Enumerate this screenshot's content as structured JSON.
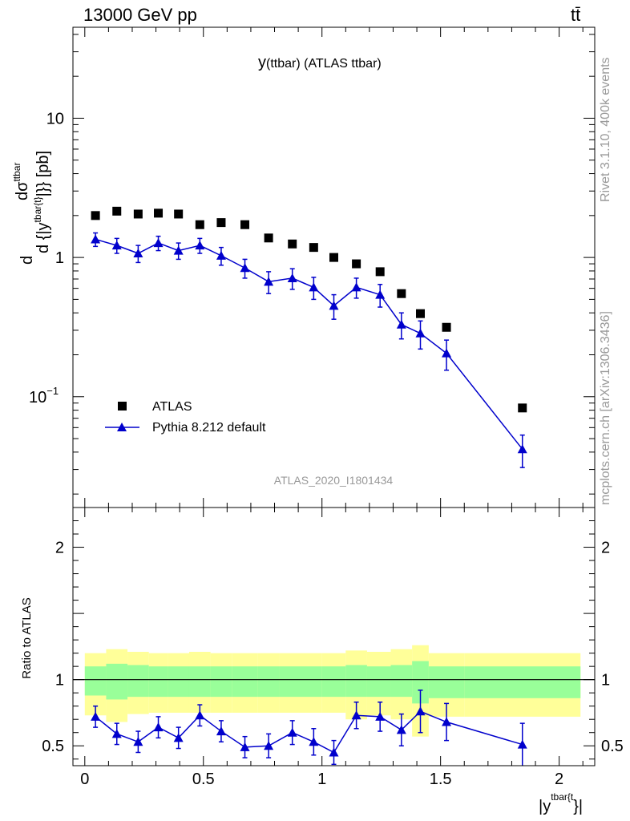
{
  "header": {
    "energy_label": "13000 GeV pp",
    "process_label": "tt̄"
  },
  "side_labels": {
    "rivet": "Rivet 3.1.10,  400k events",
    "mcplots": "mcplots.cern.ch [arXiv:1306.3436]"
  },
  "chart_data": [
    {
      "type": "scatter",
      "title_main": "y",
      "title_sub": "(ttbar)  (ATLAS ttbar)",
      "ylabel": "d dσ^{ttbar} / d {|y^{tbar{t}}|} [pb]",
      "ylabel_top": "dσ",
      "ylabel_top_sup": "ttbar",
      "ylabel_bottom": "d {|y",
      "ylabel_bottom_sup": "tbar{t}",
      "ylabel_bottom_end": "|}} [pb]",
      "ylabel_prefix": "d",
      "yscale": "log",
      "ylim": [
        0.016,
        45
      ],
      "xlim": [
        -0.05,
        2.15
      ],
      "yticks": [
        {
          "value": 0.1,
          "label": "10",
          "exp": "−1"
        },
        {
          "value": 1,
          "label": "1",
          "exp": ""
        },
        {
          "value": 10,
          "label": "10",
          "exp": ""
        }
      ],
      "watermark": "ATLAS_2020_I1801434",
      "legend_position": "bottom-left",
      "series": [
        {
          "name": "ATLAS",
          "marker": "square",
          "color": "#000000",
          "x": [
            0.045,
            0.135,
            0.225,
            0.31,
            0.395,
            0.485,
            0.575,
            0.675,
            0.775,
            0.875,
            0.965,
            1.05,
            1.145,
            1.245,
            1.335,
            1.415,
            1.525,
            1.845
          ],
          "y": [
            2.0,
            2.15,
            2.05,
            2.08,
            2.05,
            1.72,
            1.78,
            1.72,
            1.38,
            1.25,
            1.18,
            1.0,
            0.9,
            0.79,
            0.55,
            0.395,
            0.315,
            0.083
          ]
        },
        {
          "name": "Pythia 8.212 default",
          "marker": "triangle",
          "color": "#0000cc",
          "x": [
            0.045,
            0.135,
            0.225,
            0.31,
            0.395,
            0.485,
            0.575,
            0.675,
            0.775,
            0.875,
            0.965,
            1.05,
            1.145,
            1.245,
            1.335,
            1.415,
            1.525,
            1.845
          ],
          "y": [
            1.35,
            1.22,
            1.07,
            1.27,
            1.12,
            1.22,
            1.03,
            0.84,
            0.67,
            0.71,
            0.61,
            0.45,
            0.61,
            0.54,
            0.33,
            0.285,
            0.205,
            0.042
          ],
          "yerr": [
            0.15,
            0.15,
            0.15,
            0.15,
            0.15,
            0.15,
            0.15,
            0.13,
            0.12,
            0.12,
            0.11,
            0.09,
            0.1,
            0.1,
            0.07,
            0.065,
            0.05,
            0.011
          ]
        }
      ]
    },
    {
      "type": "scatter",
      "ylabel": "Ratio to ATLAS",
      "xlabel_main": "|y",
      "xlabel_sup": "tbar{t",
      "xlabel_end": "}|",
      "ylim": [
        0.35,
        2.3
      ],
      "xlim": [
        -0.05,
        2.15
      ],
      "xticks": [
        {
          "value": 0,
          "label": "0"
        },
        {
          "value": 0.5,
          "label": "0.5"
        },
        {
          "value": 1,
          "label": "1"
        },
        {
          "value": 1.5,
          "label": "1.5"
        },
        {
          "value": 2,
          "label": "2"
        }
      ],
      "yticks": [
        {
          "value": 0.5,
          "label": "0.5"
        },
        {
          "value": 1,
          "label": "1"
        },
        {
          "value": 2,
          "label": "2"
        }
      ],
      "bands": {
        "yellow_color": "#ffff99",
        "green_color": "#99ff99",
        "bins": [
          {
            "x0": 0.0,
            "x1": 0.09,
            "y_lo": 0.73,
            "y_hi": 1.2,
            "g_lo": 0.88,
            "g_hi": 1.1
          },
          {
            "x0": 0.09,
            "x1": 0.18,
            "y_lo": 0.68,
            "y_hi": 1.23,
            "g_lo": 0.85,
            "g_hi": 1.12
          },
          {
            "x0": 0.18,
            "x1": 0.27,
            "y_lo": 0.74,
            "y_hi": 1.21,
            "g_lo": 0.87,
            "g_hi": 1.11
          },
          {
            "x0": 0.27,
            "x1": 0.35,
            "y_lo": 0.75,
            "y_hi": 1.2,
            "g_lo": 0.87,
            "g_hi": 1.1
          },
          {
            "x0": 0.35,
            "x1": 0.44,
            "y_lo": 0.75,
            "y_hi": 1.2,
            "g_lo": 0.87,
            "g_hi": 1.1
          },
          {
            "x0": 0.44,
            "x1": 0.53,
            "y_lo": 0.75,
            "y_hi": 1.21,
            "g_lo": 0.87,
            "g_hi": 1.1
          },
          {
            "x0": 0.53,
            "x1": 0.62,
            "y_lo": 0.75,
            "y_hi": 1.2,
            "g_lo": 0.87,
            "g_hi": 1.1
          },
          {
            "x0": 0.62,
            "x1": 0.73,
            "y_lo": 0.75,
            "y_hi": 1.2,
            "g_lo": 0.87,
            "g_hi": 1.1
          },
          {
            "x0": 0.73,
            "x1": 0.82,
            "y_lo": 0.75,
            "y_hi": 1.2,
            "g_lo": 0.87,
            "g_hi": 1.1
          },
          {
            "x0": 0.82,
            "x1": 0.93,
            "y_lo": 0.75,
            "y_hi": 1.2,
            "g_lo": 0.87,
            "g_hi": 1.1
          },
          {
            "x0": 0.93,
            "x1": 1.0,
            "y_lo": 0.75,
            "y_hi": 1.2,
            "g_lo": 0.87,
            "g_hi": 1.1
          },
          {
            "x0": 1.0,
            "x1": 1.1,
            "y_lo": 0.75,
            "y_hi": 1.2,
            "g_lo": 0.87,
            "g_hi": 1.1
          },
          {
            "x0": 1.1,
            "x1": 1.19,
            "y_lo": 0.7,
            "y_hi": 1.22,
            "g_lo": 0.87,
            "g_hi": 1.11
          },
          {
            "x0": 1.19,
            "x1": 1.29,
            "y_lo": 0.73,
            "y_hi": 1.21,
            "g_lo": 0.87,
            "g_hi": 1.1
          },
          {
            "x0": 1.29,
            "x1": 1.38,
            "y_lo": 0.7,
            "y_hi": 1.23,
            "g_lo": 0.87,
            "g_hi": 1.11
          },
          {
            "x0": 1.38,
            "x1": 1.45,
            "y_lo": 0.57,
            "y_hi": 1.26,
            "g_lo": 0.82,
            "g_hi": 1.14
          },
          {
            "x0": 1.45,
            "x1": 1.6,
            "y_lo": 0.72,
            "y_hi": 1.2,
            "g_lo": 0.86,
            "g_hi": 1.1
          },
          {
            "x0": 1.6,
            "x1": 2.09,
            "y_lo": 0.72,
            "y_hi": 1.2,
            "g_lo": 0.86,
            "g_hi": 1.1
          }
        ]
      },
      "reference_line": 1,
      "series": [
        {
          "name": "Pythia 8.212 default",
          "marker": "triangle",
          "color": "#0000cc",
          "x": [
            0.045,
            0.135,
            0.225,
            0.31,
            0.395,
            0.485,
            0.575,
            0.675,
            0.775,
            0.875,
            0.965,
            1.05,
            1.145,
            1.245,
            1.335,
            1.415,
            1.525,
            1.845
          ],
          "y": [
            0.72,
            0.59,
            0.53,
            0.64,
            0.56,
            0.73,
            0.61,
            0.49,
            0.5,
            0.6,
            0.53,
            0.45,
            0.73,
            0.72,
            0.62,
            0.76,
            0.68,
            0.51
          ],
          "yerr": [
            0.08,
            0.08,
            0.08,
            0.08,
            0.08,
            0.08,
            0.08,
            0.08,
            0.09,
            0.09,
            0.1,
            0.09,
            0.1,
            0.11,
            0.12,
            0.16,
            0.14,
            0.16
          ]
        }
      ]
    }
  ]
}
